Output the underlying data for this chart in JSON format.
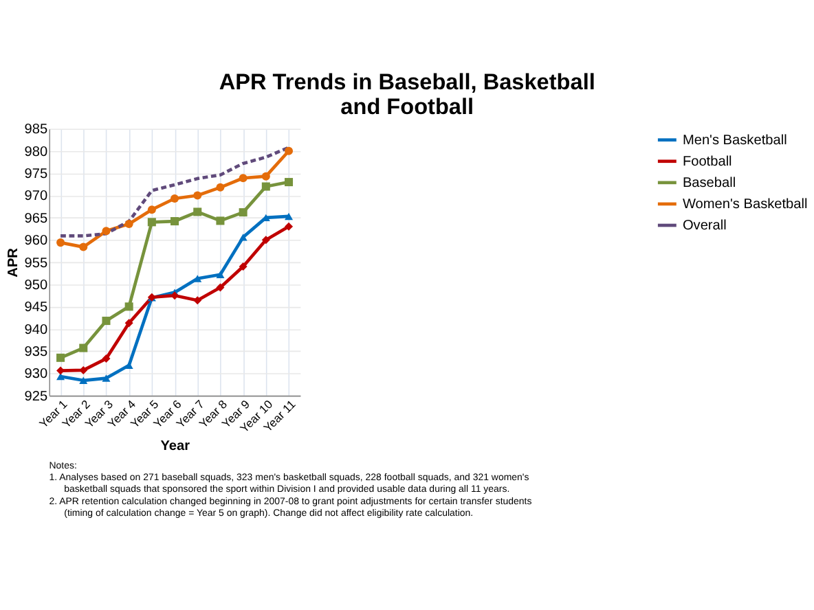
{
  "chart_data": {
    "type": "line",
    "title": "APR Trends in Baseball, Basketball and Football",
    "xlabel": "Year",
    "ylabel": "APR",
    "categories": [
      "Year 1",
      "Year 2",
      "Year 3",
      "Year 4",
      "Year 5",
      "Year 6",
      "Year 7",
      "Year 8",
      "Year 9",
      "Year 10",
      "Year 11"
    ],
    "series": [
      {
        "name": "Men's Basketball",
        "color": "#0070c0",
        "marker": "triangle",
        "line_style": "solid",
        "values": [
          929.3,
          928.4,
          928.9,
          931.8,
          947,
          948.2,
          951.3,
          952.2,
          960.6,
          965,
          965.3
        ]
      },
      {
        "name": "Football",
        "color": "#c00000",
        "marker": "diamond",
        "line_style": "solid",
        "values": [
          930.6,
          930.7,
          933.3,
          941.3,
          947.1,
          947.5,
          946.4,
          949.3,
          954,
          960,
          963
        ]
      },
      {
        "name": "Baseball",
        "color": "#77933c",
        "marker": "square",
        "line_style": "solid",
        "values": [
          933.5,
          935.7,
          941.8,
          945,
          964,
          964.2,
          966.3,
          964.3,
          966.2,
          972,
          973
        ]
      },
      {
        "name": "Women's Basketball",
        "color": "#e46c0a",
        "marker": "circle",
        "line_style": "solid",
        "values": [
          959.4,
          958.4,
          962,
          963.6,
          966.8,
          969.3,
          970,
          971.8,
          973.9,
          974.3,
          980
        ]
      },
      {
        "name": "Overall",
        "color": "#604a7b",
        "marker": "none",
        "line_style": "dashed",
        "values": [
          960.9,
          960.9,
          961.4,
          964.2,
          971.1,
          972.4,
          973.8,
          974.6,
          977.2,
          978.6,
          980.8
        ]
      }
    ],
    "ylim": [
      925,
      985
    ],
    "yticks": [
      925,
      930,
      935,
      940,
      945,
      950,
      955,
      960,
      965,
      970,
      975,
      980,
      985
    ],
    "grid": true,
    "legend": "right",
    "annotations": [
      "Notes:",
      "1.  Analyses based on 271 baseball squads, 323 men's basketball squads, 228 football squads, and 321 women's basketball squads that sponsored the sport within Division I and provided usable data during all 11 years.",
      "2.  APR retention calculation changed  beginning in 2007-08 to grant point adjustments for certain transfer students (timing of calculation change = Year 5 on graph). Change did not affect eligibility rate calculation."
    ]
  }
}
